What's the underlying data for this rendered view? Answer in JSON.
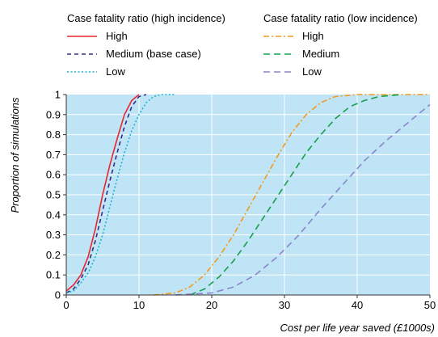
{
  "chart_data": {
    "type": "line",
    "xlabel": "Cost per life year saved (£1000s)",
    "ylabel": "Proportion of simulations",
    "xlim": [
      0,
      50
    ],
    "ylim": [
      0,
      1
    ],
    "x_ticks": [
      "0",
      "10",
      "20",
      "30",
      "40",
      "50"
    ],
    "y_ticks": [
      "0",
      "0.1",
      "0.2",
      "0.3",
      "0.4",
      "0.5",
      "0.6",
      "0.7",
      "0.8",
      "0.9",
      "1"
    ],
    "plot_background": "#bfe4f5",
    "grid": true,
    "legend": [
      {
        "title": "Case fatality ratio (high incidence)",
        "entries": [
          "High",
          "Medium (base case)",
          "Low"
        ]
      },
      {
        "title": "Case fatality ratio (low incidence)",
        "entries": [
          "High",
          "Medium",
          "Low"
        ]
      }
    ],
    "series": [
      {
        "name": "High",
        "group": "high incidence",
        "color": "#e8262e",
        "dash": "solid",
        "points": [
          [
            0,
            0.02
          ],
          [
            1,
            0.05
          ],
          [
            2,
            0.1
          ],
          [
            3,
            0.19
          ],
          [
            4,
            0.33
          ],
          [
            5,
            0.5
          ],
          [
            6,
            0.65
          ],
          [
            7,
            0.78
          ],
          [
            8,
            0.9
          ],
          [
            9,
            0.97
          ],
          [
            10,
            1.0
          ]
        ]
      },
      {
        "name": "Medium (base case)",
        "group": "high incidence",
        "color": "#2b2f86",
        "dash": "dash",
        "points": [
          [
            0,
            0.01
          ],
          [
            1,
            0.03
          ],
          [
            2,
            0.08
          ],
          [
            3,
            0.15
          ],
          [
            4,
            0.27
          ],
          [
            5,
            0.42
          ],
          [
            6,
            0.57
          ],
          [
            7,
            0.71
          ],
          [
            8,
            0.84
          ],
          [
            9,
            0.94
          ],
          [
            10,
            0.99
          ],
          [
            11,
            1.0
          ]
        ]
      },
      {
        "name": "Low",
        "group": "high incidence",
        "color": "#19b4cf",
        "dash": "dot",
        "points": [
          [
            0,
            0.01
          ],
          [
            1,
            0.02
          ],
          [
            2,
            0.06
          ],
          [
            3,
            0.11
          ],
          [
            4,
            0.19
          ],
          [
            5,
            0.3
          ],
          [
            6,
            0.44
          ],
          [
            7,
            0.58
          ],
          [
            8,
            0.71
          ],
          [
            9,
            0.82
          ],
          [
            10,
            0.9
          ],
          [
            11,
            0.96
          ],
          [
            12,
            0.99
          ],
          [
            13,
            1.0
          ],
          [
            15,
            1.0
          ]
        ]
      },
      {
        "name": "High",
        "group": "low incidence",
        "color": "#f39a1e",
        "dash": "dashdot",
        "points": [
          [
            12,
            0.0
          ],
          [
            15,
            0.01
          ],
          [
            17,
            0.04
          ],
          [
            19,
            0.1
          ],
          [
            21,
            0.19
          ],
          [
            23,
            0.3
          ],
          [
            25,
            0.43
          ],
          [
            27,
            0.56
          ],
          [
            29,
            0.69
          ],
          [
            31,
            0.81
          ],
          [
            33,
            0.9
          ],
          [
            35,
            0.96
          ],
          [
            37,
            0.99
          ],
          [
            40,
            1.0
          ],
          [
            50,
            1.0
          ]
        ]
      },
      {
        "name": "Medium",
        "group": "low incidence",
        "color": "#14a04a",
        "dash": "longdash",
        "points": [
          [
            17,
            0.0
          ],
          [
            19,
            0.03
          ],
          [
            21,
            0.09
          ],
          [
            23,
            0.17
          ],
          [
            25,
            0.27
          ],
          [
            27,
            0.38
          ],
          [
            29,
            0.49
          ],
          [
            31,
            0.6
          ],
          [
            33,
            0.71
          ],
          [
            35,
            0.8
          ],
          [
            37,
            0.88
          ],
          [
            39,
            0.94
          ],
          [
            41,
            0.97
          ],
          [
            43,
            0.99
          ],
          [
            46,
            1.0
          ]
        ]
      },
      {
        "name": "Low",
        "group": "low incidence",
        "color": "#8a85cc",
        "dash": "longdash",
        "points": [
          [
            15,
            0.0
          ],
          [
            20,
            0.01
          ],
          [
            23,
            0.04
          ],
          [
            26,
            0.1
          ],
          [
            29,
            0.19
          ],
          [
            32,
            0.3
          ],
          [
            35,
            0.43
          ],
          [
            38,
            0.55
          ],
          [
            41,
            0.67
          ],
          [
            44,
            0.77
          ],
          [
            47,
            0.86
          ],
          [
            50,
            0.95
          ]
        ]
      }
    ]
  }
}
